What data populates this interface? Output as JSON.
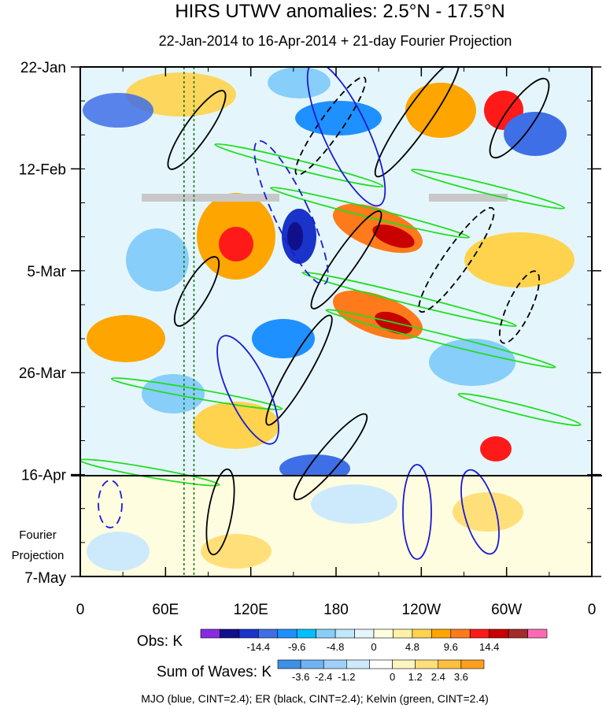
{
  "chart_data": {
    "type": "heatmap",
    "title": "HIRS UTWV anomalies: 2.5°N - 17.5°N",
    "subtitle": "22-Jan-2014 to 16-Apr-2014 + 21-day Fourier Projection",
    "x_ticks": [
      "0",
      "60E",
      "120E",
      "180",
      "120W",
      "60W",
      "0"
    ],
    "x_range_degE": [
      0,
      360
    ],
    "y_ticks": [
      "22-Jan",
      "12-Feb",
      "5-Mar",
      "26-Mar",
      "16-Apr",
      "7-May"
    ],
    "y_range_days_from_22Jan": [
      0,
      105
    ],
    "projection_start_label": "16-Apr",
    "projection_label": [
      "Fourier",
      "Projection"
    ],
    "obs_colorbar": {
      "label": "Obs: K",
      "tick_labels": [
        "-14.4",
        "-9.6",
        "-4.8",
        "0",
        "4.8",
        "9.6",
        "14.4"
      ],
      "colors": [
        "#8a2be2",
        "#10108a",
        "#1a33c8",
        "#3f6fe6",
        "#1e90ff",
        "#00bfff",
        "#87cefa",
        "#bfe8fb",
        "#e4f6fc",
        "#fffde0",
        "#fff2a8",
        "#ffd34d",
        "#ffa500",
        "#ff7a1a",
        "#ff1a1a",
        "#c80000",
        "#a52a2a",
        "#ff69b4"
      ]
    },
    "waves_colorbar": {
      "label": "Sum of Waves: K",
      "tick_labels": [
        "-3.6",
        "-2.4",
        "-1.2",
        "0",
        "1.2",
        "2.4",
        "3.6"
      ],
      "colors": [
        "#3f8fe6",
        "#6fb3f2",
        "#9fd0f8",
        "#cdeafc",
        "#ffffff",
        "#fff5c0",
        "#ffdf7a",
        "#ffbf40",
        "#ff9f20"
      ]
    },
    "legend_text": "MJO (blue, CINT=2.4); ER (black, CINT=2.4); Kelvin (green, CINT=2.4)",
    "contour_colors": {
      "mjo": "#1a1ad6",
      "er": "#000000",
      "kelvin": "#22dd22"
    },
    "guide_lines_lon": [
      73,
      80
    ]
  }
}
